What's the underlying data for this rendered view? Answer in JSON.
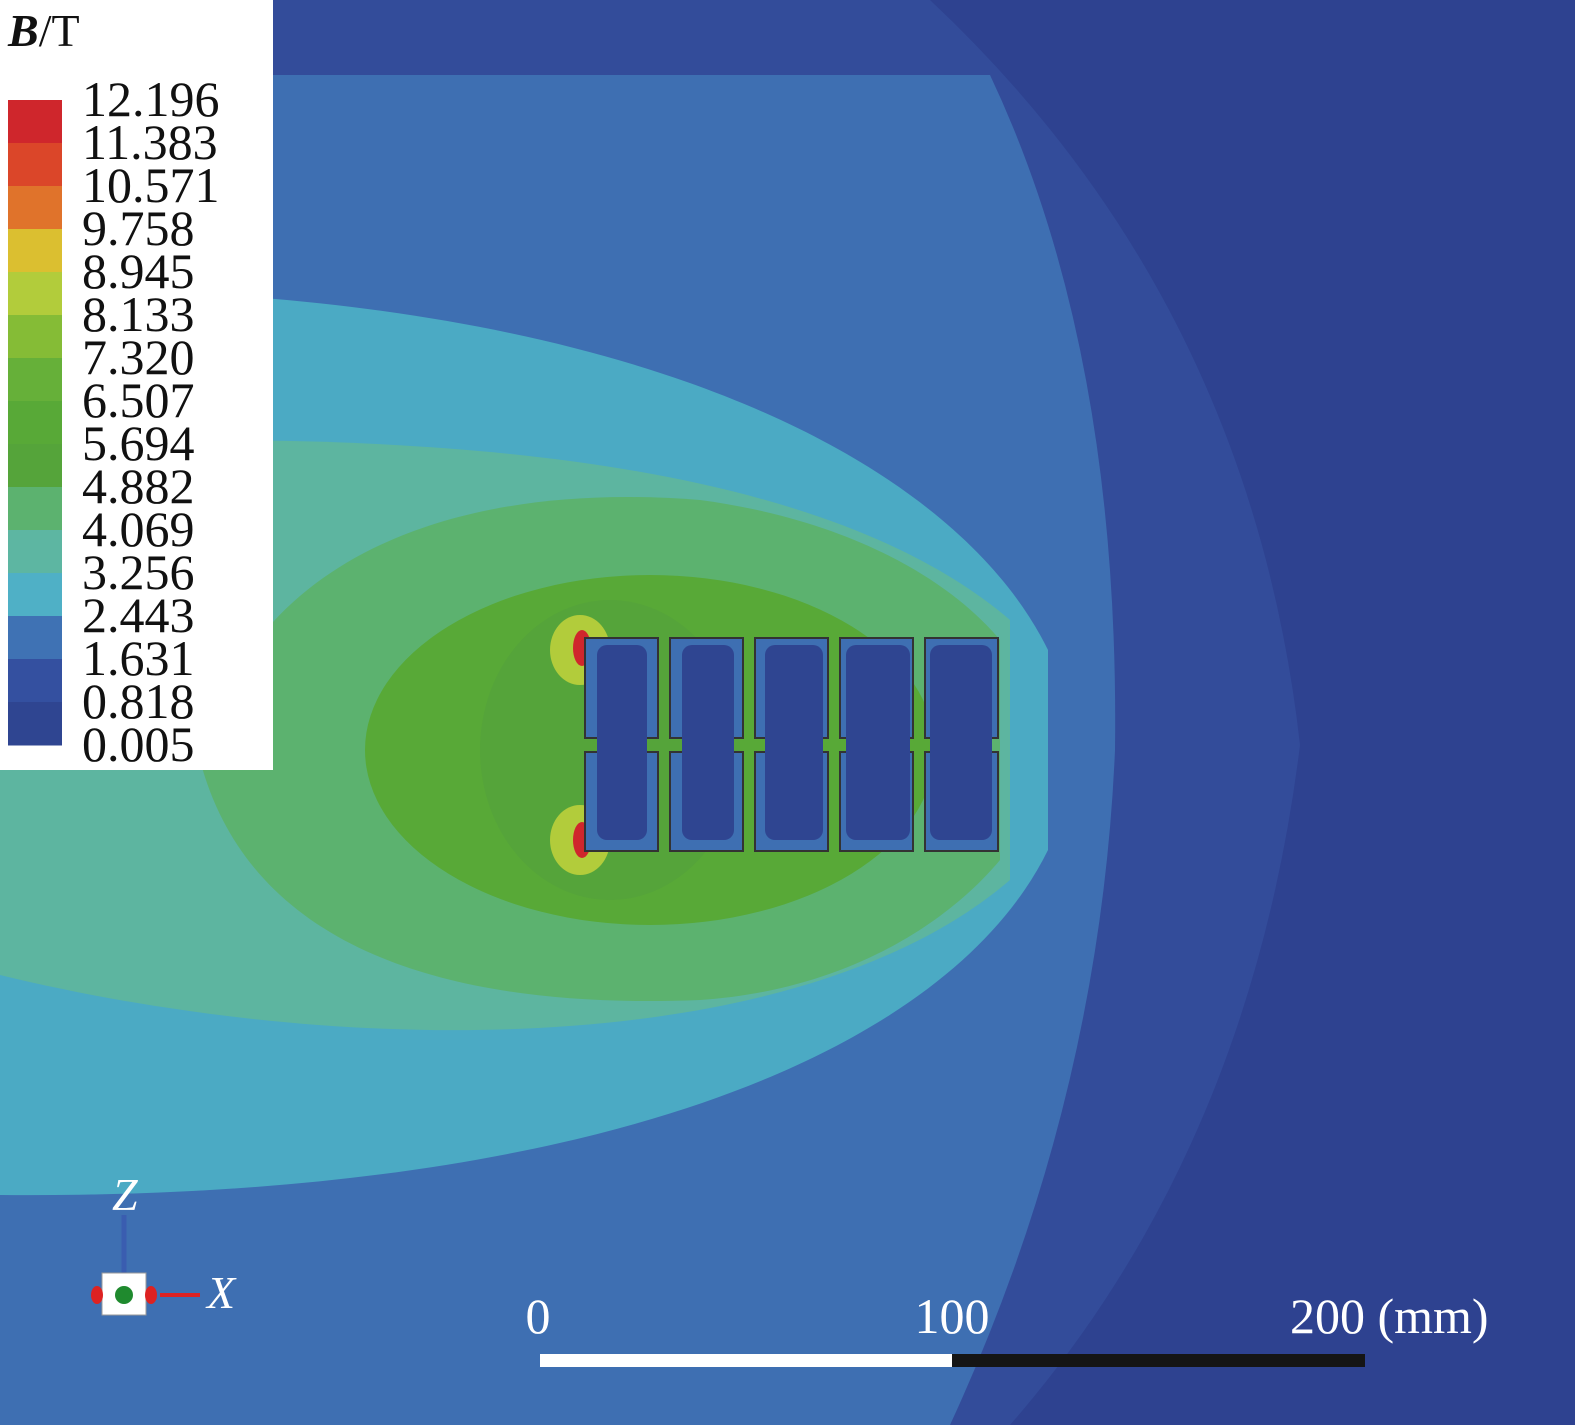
{
  "legend": {
    "title_symbol": "B",
    "title_unit": "/T",
    "labels": [
      "12.196",
      "11.383",
      "10.571",
      "9.758",
      "8.945",
      "8.133",
      "7.320",
      "6.507",
      "5.694",
      "4.882",
      "4.069",
      "3.256",
      "2.443",
      "1.631",
      "0.818",
      "0.005"
    ],
    "colors": [
      "#cf262c",
      "#db4629",
      "#e0732b",
      "#dbbf30",
      "#b2cc3b",
      "#85bc36",
      "#66b039",
      "#58a937",
      "#55a43a",
      "#5cb26f",
      "#5db6a2",
      "#4fb0c6",
      "#3f72b4",
      "#3450a0",
      "#2f4591"
    ]
  },
  "scale_bar": {
    "labels": [
      "0",
      "100",
      "200 (mm)"
    ]
  },
  "triad": {
    "z": "Z",
    "x": "X"
  }
}
